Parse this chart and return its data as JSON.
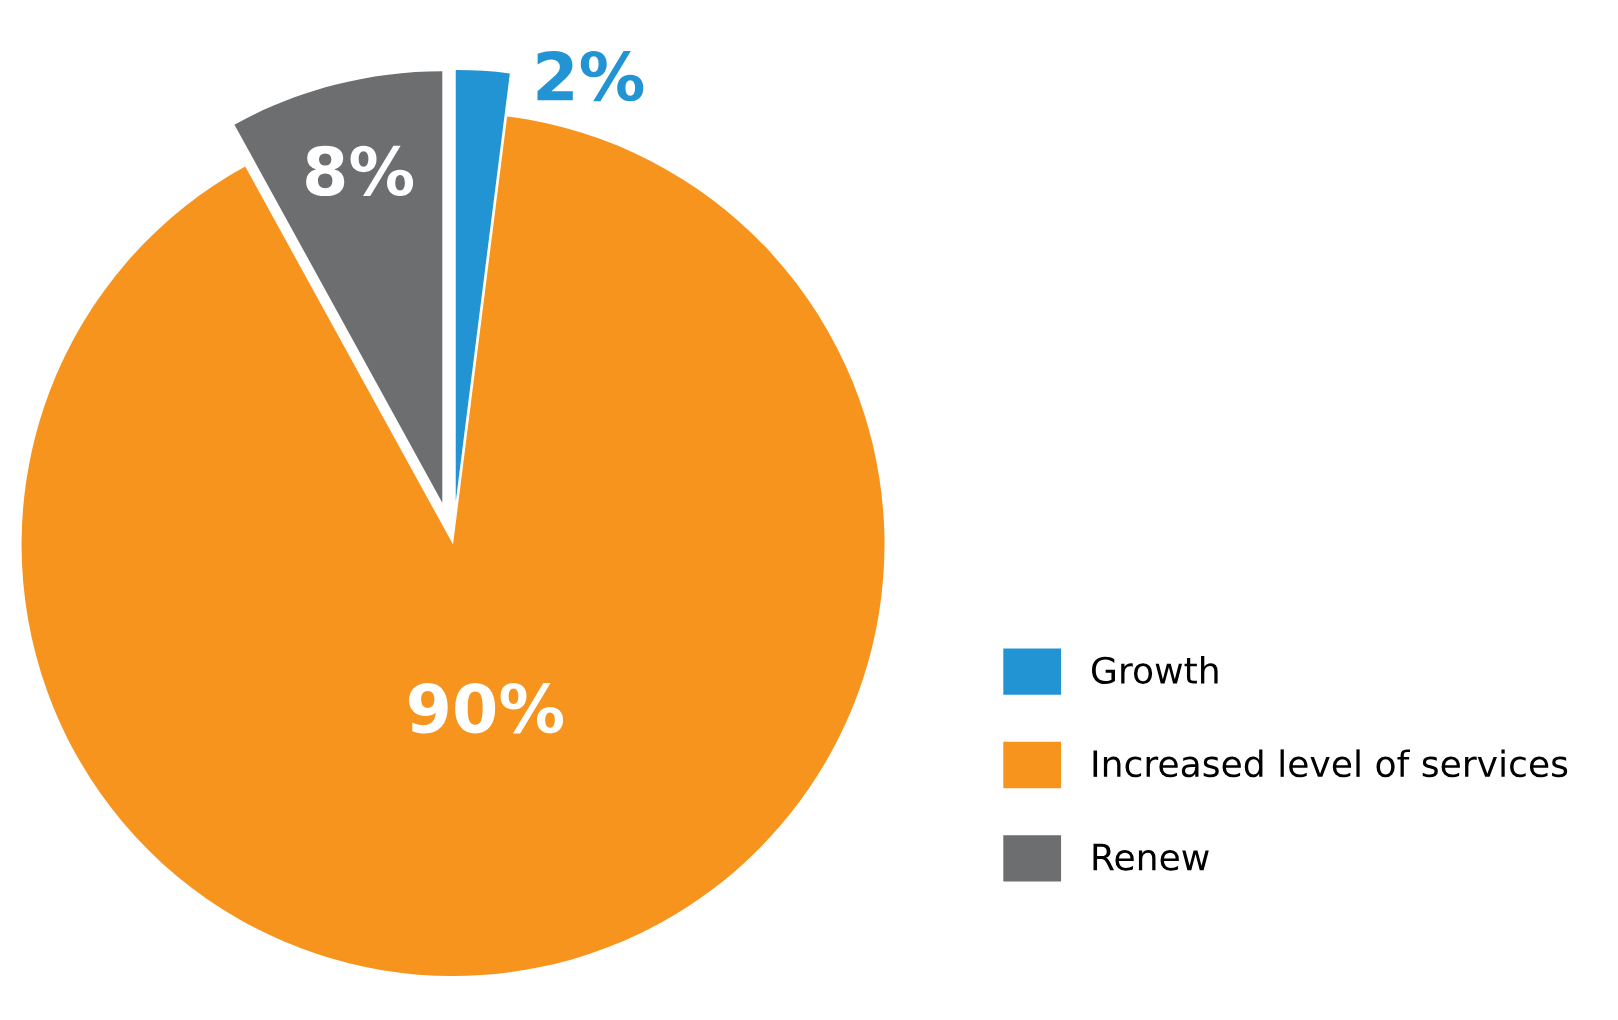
{
  "chart_data": {
    "type": "pie",
    "categories": [
      "Growth",
      "Increased level of services",
      "Renew"
    ],
    "values": [
      2,
      90,
      8
    ],
    "colors": [
      "#2293d3",
      "#f7941d",
      "#6d6e70"
    ],
    "value_labels": [
      "2%",
      "90%",
      "8%"
    ],
    "legend": "right"
  }
}
